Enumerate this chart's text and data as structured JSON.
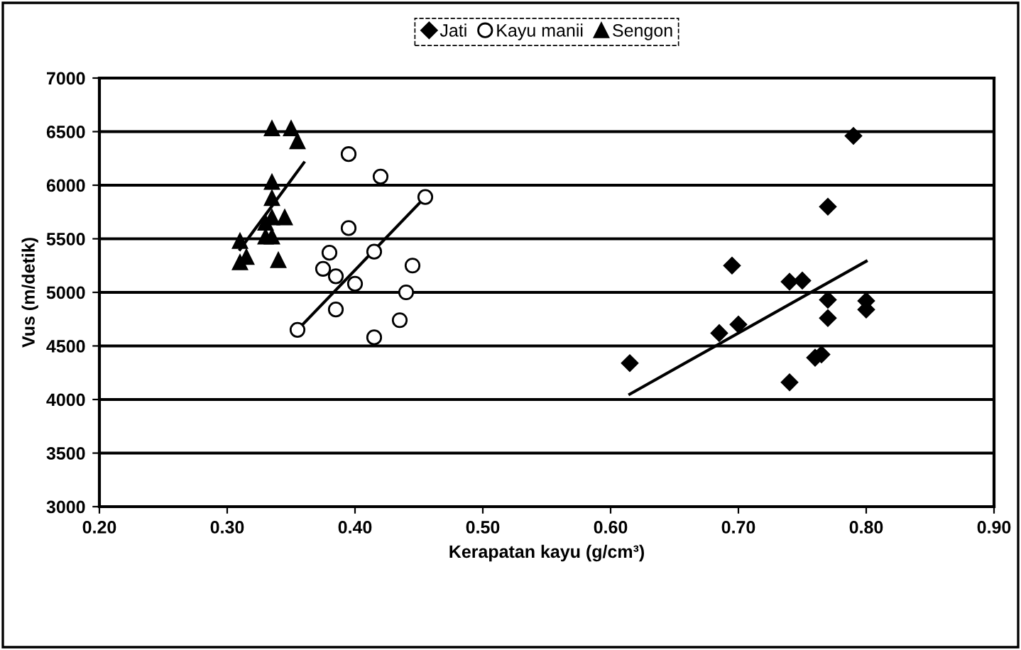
{
  "chart_data": {
    "type": "scatter",
    "xlabel": "Kerapatan kayu (g/cm³)",
    "ylabel": "Vus (m/detik)",
    "xlim": [
      0.2,
      0.9
    ],
    "xticks": [
      {
        "value": 0.2,
        "label": "0.20"
      },
      {
        "value": 0.3,
        "label": "0.30"
      },
      {
        "value": 0.4,
        "label": "0.40"
      },
      {
        "value": 0.5,
        "label": "0.50"
      },
      {
        "value": 0.6,
        "label": "0.60"
      },
      {
        "value": 0.7,
        "label": "0.70"
      },
      {
        "value": 0.8,
        "label": "0.80"
      },
      {
        "value": 0.9,
        "label": "0.90"
      }
    ],
    "ylim": [
      3000,
      7000
    ],
    "yticks": [
      3000,
      3500,
      4000,
      4500,
      5000,
      5500,
      6000,
      6500,
      7000
    ],
    "grid": "y",
    "legend": "top",
    "series": [
      {
        "name": "Jati",
        "color": "#000000",
        "marker": "diamond",
        "x": [
          0.615,
          0.685,
          0.7,
          0.695,
          0.74,
          0.74,
          0.75,
          0.76,
          0.765,
          0.77,
          0.77,
          0.77,
          0.79,
          0.8,
          0.8
        ],
        "values": [
          4340,
          4620,
          4700,
          5250,
          4160,
          5100,
          5110,
          4390,
          4420,
          4760,
          4930,
          5800,
          6460,
          4920,
          4840
        ]
      },
      {
        "name": "Kayu manii",
        "color": "#000000",
        "marker": "circle",
        "x": [
          0.355,
          0.375,
          0.38,
          0.385,
          0.385,
          0.395,
          0.395,
          0.4,
          0.415,
          0.415,
          0.42,
          0.435,
          0.44,
          0.445,
          0.455
        ],
        "values": [
          4650,
          5220,
          5370,
          4840,
          5150,
          5600,
          6290,
          5080,
          5380,
          4580,
          6080,
          4740,
          5000,
          5250,
          5890
        ]
      },
      {
        "name": "Sengon",
        "color": "#000000",
        "marker": "triangle",
        "x": [
          0.31,
          0.31,
          0.315,
          0.33,
          0.335,
          0.335,
          0.335,
          0.335,
          0.335,
          0.34,
          0.345,
          0.35,
          0.355,
          0.33
        ],
        "values": [
          5480,
          5280,
          5330,
          5520,
          5520,
          6530,
          6030,
          5880,
          5700,
          5300,
          5700,
          6530,
          6410,
          5650
        ]
      },
      {
        "type": "line",
        "color": "#000000",
        "x": [
          0.615,
          0.8
        ],
        "values": [
          4050,
          5290
        ]
      },
      {
        "type": "line",
        "color": "#000000",
        "x": [
          0.355,
          0.455
        ],
        "values": [
          4650,
          5890
        ]
      },
      {
        "type": "line",
        "color": "#000000",
        "x": [
          0.31,
          0.36
        ],
        "values": [
          5400,
          6210
        ]
      }
    ]
  }
}
